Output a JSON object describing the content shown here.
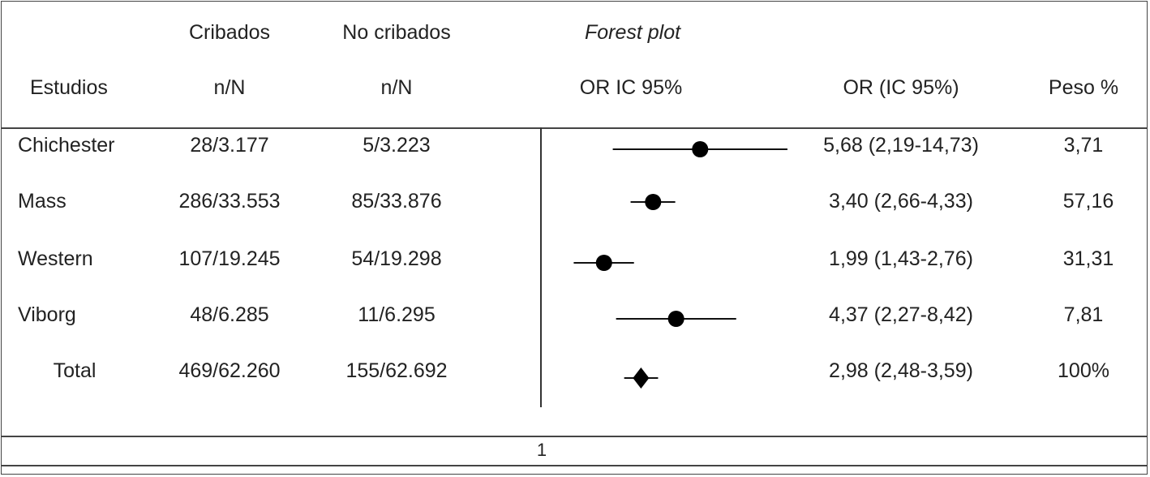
{
  "chart_data": {
    "type": "table",
    "forest_plot_label": "Forest plot",
    "headers": {
      "cribados": "Cribados",
      "no_cribados": "No cribados",
      "estudios": "Estudios",
      "n_over_N_1": "n/N",
      "n_over_N_2": "n/N",
      "or_ic": "OR IC 95%",
      "or_ic_paren": "OR (IC 95%)",
      "peso": "Peso %"
    },
    "rows": [
      {
        "study": "Chichester",
        "screened": "28/3.177",
        "unscreened": "5/3.223",
        "or_text": "5,68 (2,19-14,73)",
        "weight": "3,71",
        "or": 5.68,
        "lo": 2.19,
        "hi": 14.73,
        "marker": "circle"
      },
      {
        "study": "Mass",
        "screened": "286/33.553",
        "unscreened": "85/33.876",
        "or_text": "3,40 (2,66-4,33)",
        "weight": "57,16",
        "or": 3.4,
        "lo": 2.66,
        "hi": 4.33,
        "marker": "circle"
      },
      {
        "study": "Western",
        "screened": "107/19.245",
        "unscreened": "54/19.298",
        "or_text": "1,99 (1,43-2,76)",
        "weight": "31,31",
        "or": 1.99,
        "lo": 1.43,
        "hi": 2.76,
        "marker": "circle"
      },
      {
        "study": "Viborg",
        "screened": "48/6.285",
        "unscreened": "11/6.295",
        "or_text": "4,37 (2,27-8,42)",
        "weight": "7,81",
        "or": 4.37,
        "lo": 2.27,
        "hi": 8.42,
        "marker": "circle"
      },
      {
        "study": "Total",
        "screened": "469/62.260",
        "unscreened": "155/62.692",
        "or_text": "2,98 (2,48-3,59)",
        "weight": "100%",
        "or": 2.98,
        "lo": 2.48,
        "hi": 3.59,
        "marker": "diamond"
      }
    ],
    "x_scale": "log",
    "reference_line_or": 1
  },
  "footer": {
    "page_number": "1"
  }
}
